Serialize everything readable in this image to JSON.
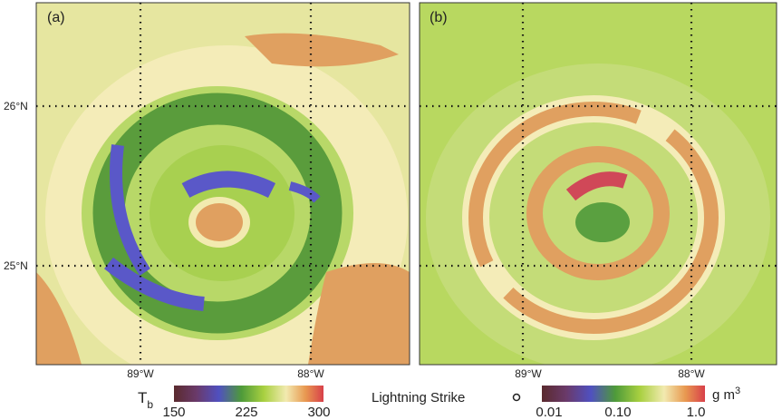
{
  "panels": [
    {
      "label": "(a)",
      "lat_labels": [
        "26°N",
        "25°N"
      ],
      "lon_labels": [
        "89°W",
        "88°W"
      ]
    },
    {
      "label": "(b)",
      "lon_labels": [
        "89°W",
        "88°W"
      ]
    }
  ],
  "colorbars": [
    {
      "symbol": "T",
      "subscript": "b",
      "tick_labels": [
        "150",
        "225",
        "300"
      ]
    },
    {
      "unit": "g m",
      "unit_superscript": "3",
      "tick_labels": [
        "0.01",
        "0.10",
        "1.0"
      ]
    }
  ],
  "legend": {
    "label": "Lightning Strike"
  }
}
